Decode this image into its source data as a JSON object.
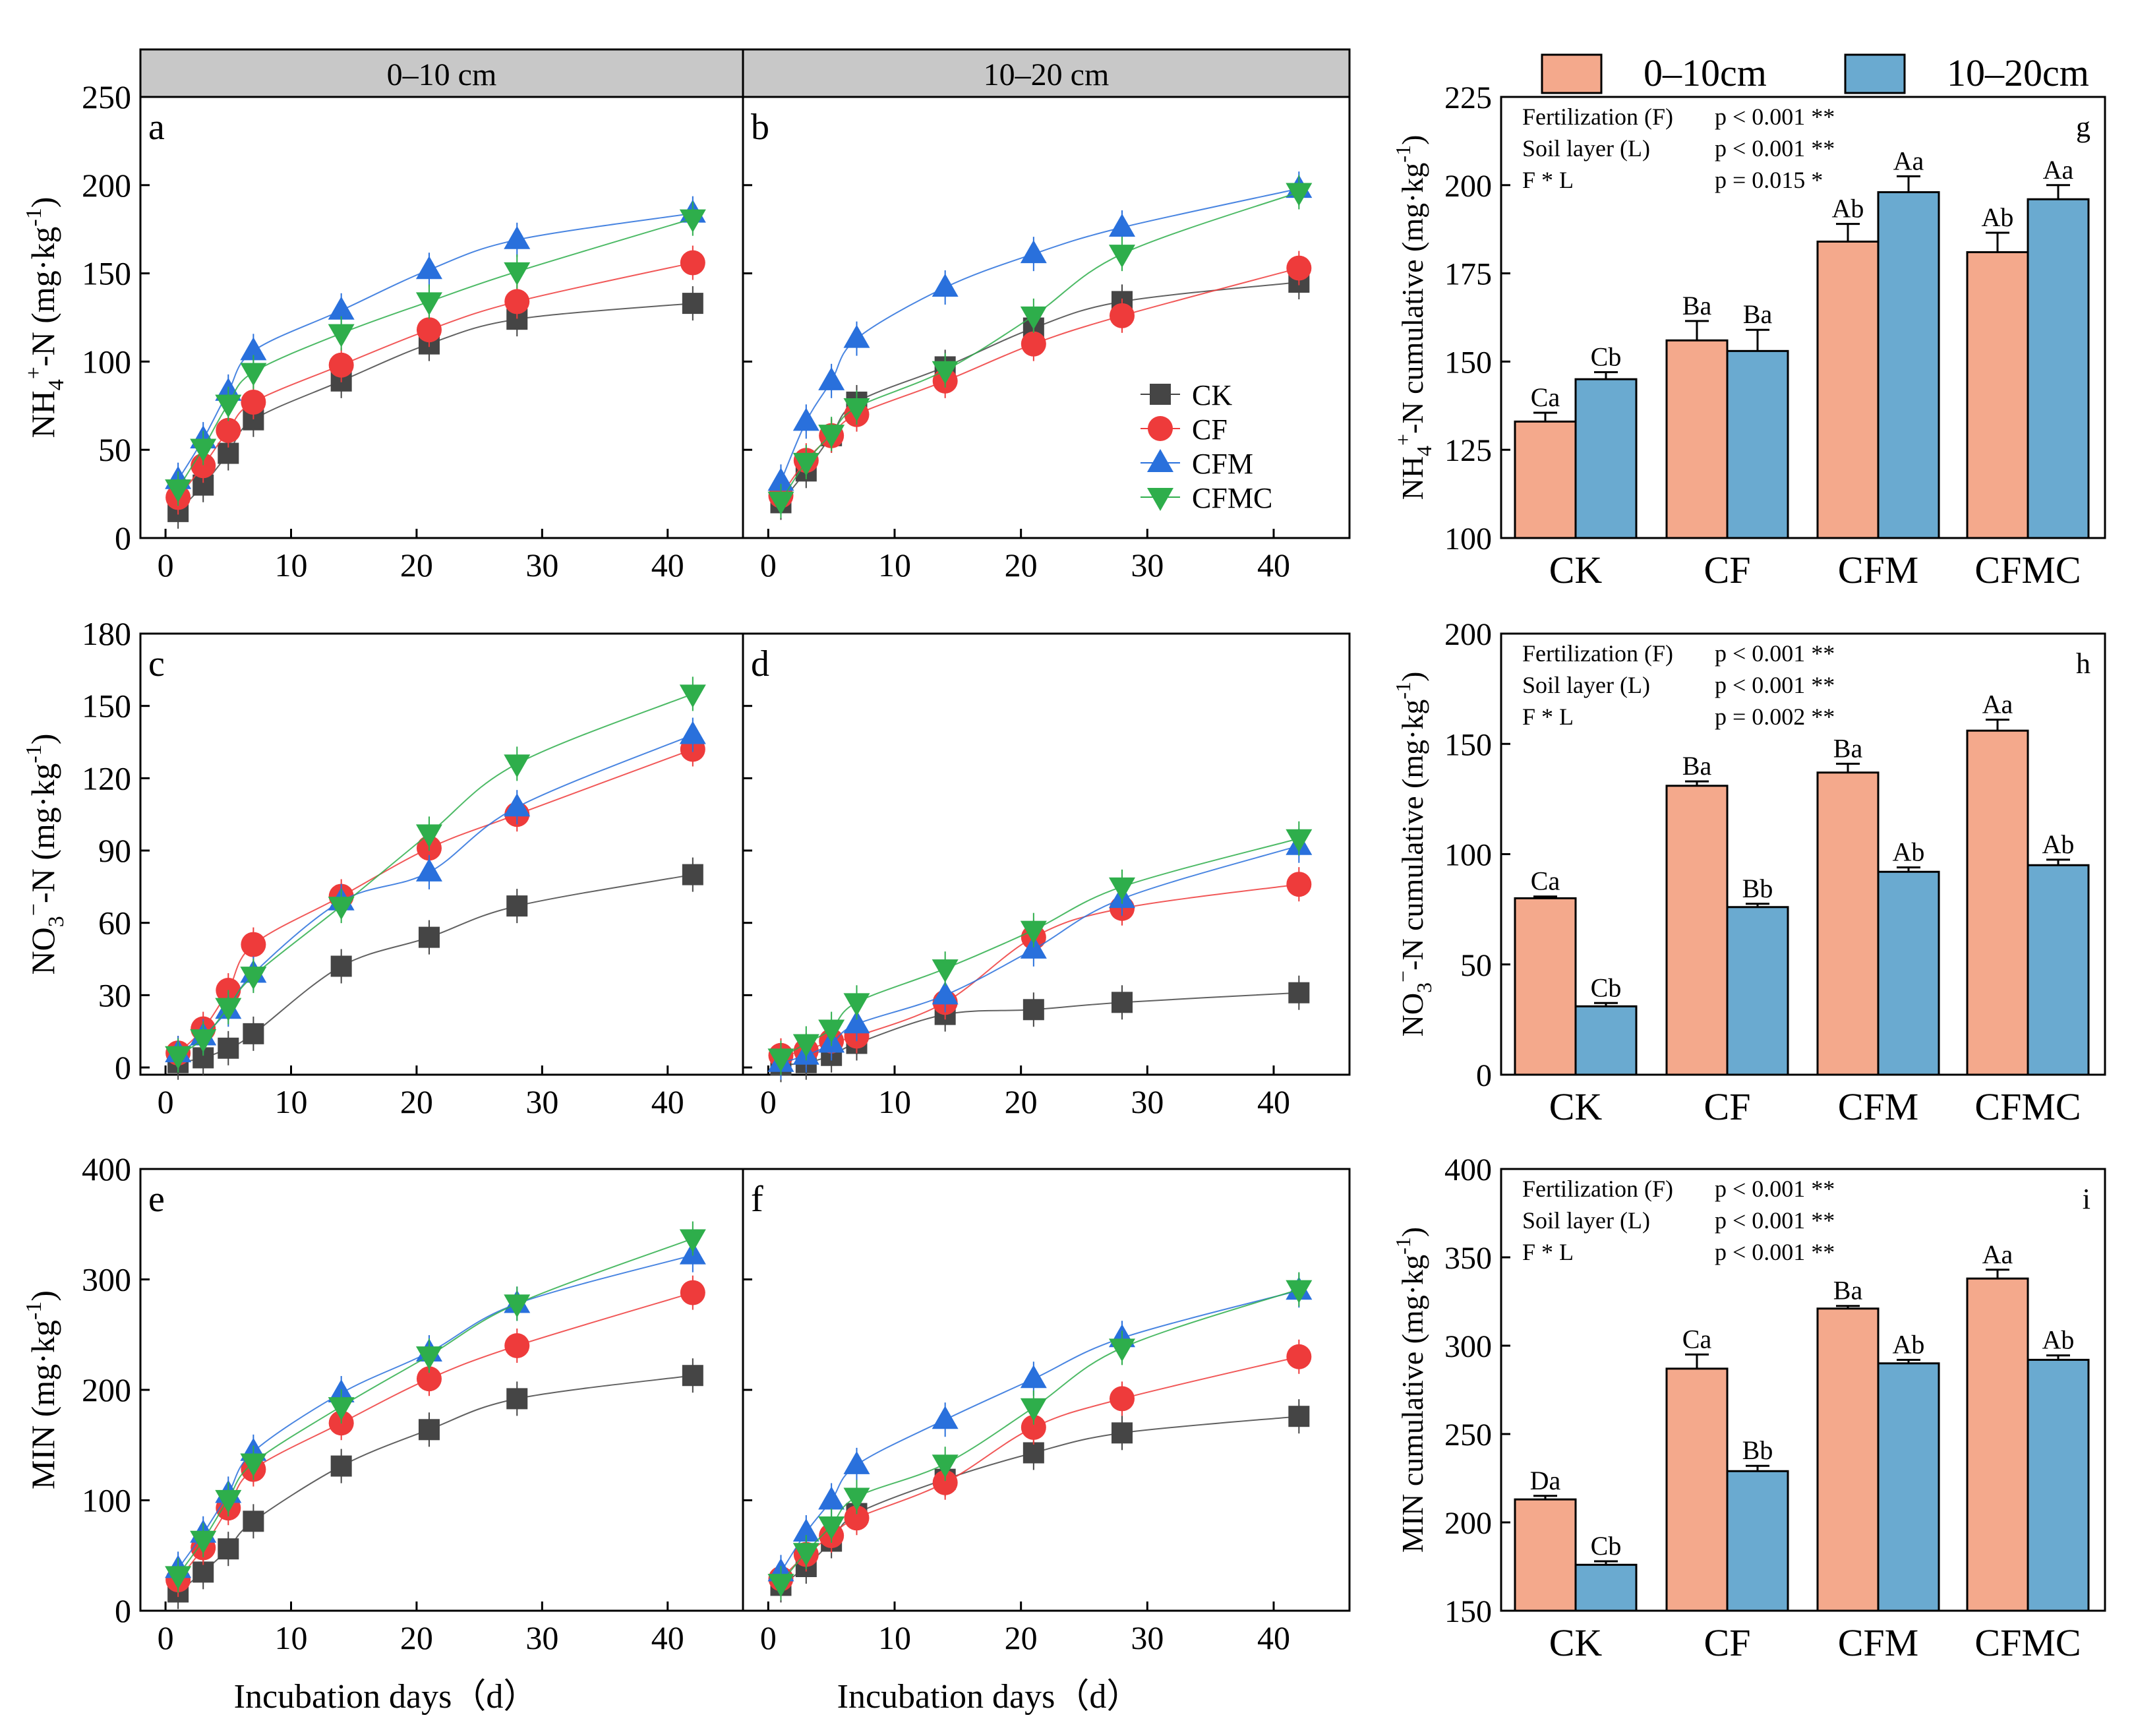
{
  "figure": {
    "days_axis_title": "Incubation days（d）",
    "depth_headers": [
      "0–10 cm",
      "10–20 cm"
    ],
    "series_names": [
      "CK",
      "CF",
      "CFM",
      "CFMC"
    ],
    "series_colors": {
      "CK": "#454545",
      "CF": "#EE3B3B",
      "CFM": "#2970DC",
      "CFMC": "#2EAE4B"
    },
    "bar_colors": {
      "0-10cm": "#F4A98C",
      "10-20cm": "#6AAAD0"
    },
    "bar_legend": [
      "0–10cm",
      "10–20cm"
    ]
  },
  "chart_data": [
    {
      "id": "a",
      "type": "line",
      "title": "0–10 cm",
      "panel_label": "a",
      "xlabel": "",
      "ylabel": "NH4+-N (mg·kg-1)",
      "xlim": [
        -2,
        46
      ],
      "ylim": [
        0,
        250
      ],
      "xticks": [
        0,
        10,
        20,
        30,
        40
      ],
      "yticks": [
        0,
        50,
        100,
        150,
        200,
        250
      ],
      "x": [
        1,
        3,
        5,
        7,
        14,
        21,
        28,
        42
      ],
      "series": [
        {
          "name": "CK",
          "values": [
            15,
            30,
            48,
            67,
            89,
            110,
            124,
            133
          ]
        },
        {
          "name": "CF",
          "values": [
            23,
            41,
            61,
            77,
            98,
            118,
            134,
            156
          ]
        },
        {
          "name": "CFM",
          "values": [
            33,
            56,
            83,
            106,
            129,
            152,
            169,
            184
          ]
        },
        {
          "name": "CFMC",
          "values": [
            28,
            51,
            76,
            94,
            116,
            134,
            151,
            181
          ]
        }
      ]
    },
    {
      "id": "b",
      "type": "line",
      "title": "10–20 cm",
      "panel_label": "b",
      "xlabel": "",
      "ylabel": "",
      "xlim": [
        -2,
        46
      ],
      "ylim": [
        0,
        250
      ],
      "xticks": [
        0,
        10,
        20,
        30,
        40
      ],
      "yticks": [],
      "legend_position": "center-right",
      "x": [
        1,
        3,
        5,
        7,
        14,
        21,
        28,
        42
      ],
      "series": [
        {
          "name": "CK",
          "values": [
            20,
            38,
            58,
            77,
            97,
            119,
            134,
            145
          ]
        },
        {
          "name": "CF",
          "values": [
            24,
            44,
            58,
            70,
            89,
            110,
            126,
            153
          ]
        },
        {
          "name": "CFM",
          "values": [
            32,
            66,
            89,
            113,
            142,
            161,
            176,
            198
          ]
        },
        {
          "name": "CFMC",
          "values": [
            21,
            43,
            59,
            74,
            95,
            126,
            161,
            196
          ]
        }
      ]
    },
    {
      "id": "c",
      "type": "line",
      "panel_label": "c",
      "xlabel": "",
      "ylabel": "NO3−-N (mg·kg-1)",
      "xlim": [
        -2,
        46
      ],
      "ylim": [
        -3,
        180
      ],
      "xticks": [
        0,
        10,
        20,
        30,
        40
      ],
      "yticks": [
        0,
        30,
        60,
        90,
        120,
        150,
        180
      ],
      "x": [
        1,
        3,
        5,
        7,
        14,
        21,
        28,
        42
      ],
      "series": [
        {
          "name": "CK",
          "values": [
            2,
            4,
            8,
            14,
            42,
            54,
            67,
            80
          ]
        },
        {
          "name": "CF",
          "values": [
            6,
            16,
            32,
            51,
            71,
            91,
            105,
            132
          ]
        },
        {
          "name": "CFM",
          "values": [
            6,
            13,
            24,
            39,
            69,
            81,
            108,
            138
          ]
        },
        {
          "name": "CFMC",
          "values": [
            5,
            12,
            25,
            38,
            67,
            97,
            126,
            155
          ]
        }
      ]
    },
    {
      "id": "d",
      "type": "line",
      "panel_label": "d",
      "xlabel": "",
      "ylabel": "",
      "xlim": [
        -2,
        46
      ],
      "ylim": [
        -3,
        180
      ],
      "xticks": [
        0,
        10,
        20,
        30,
        40
      ],
      "yticks": [],
      "x": [
        1,
        3,
        5,
        7,
        14,
        21,
        28,
        42
      ],
      "series": [
        {
          "name": "CK",
          "values": [
            1,
            2,
            5,
            10,
            22,
            24,
            27,
            31
          ]
        },
        {
          "name": "CF",
          "values": [
            5,
            7,
            11,
            13,
            27,
            54,
            66,
            76
          ]
        },
        {
          "name": "CFM",
          "values": [
            2,
            5,
            10,
            18,
            30,
            49,
            70,
            92
          ]
        },
        {
          "name": "CFMC",
          "values": [
            4,
            10,
            16,
            27,
            41,
            57,
            75,
            95
          ]
        }
      ]
    },
    {
      "id": "e",
      "type": "line",
      "panel_label": "e",
      "xlabel": "Incubation days（d）",
      "ylabel": "MIN (mg·kg-1)",
      "xlim": [
        -2,
        46
      ],
      "ylim": [
        0,
        400
      ],
      "xticks": [
        0,
        10,
        20,
        30,
        40
      ],
      "yticks": [
        0,
        100,
        200,
        300,
        400
      ],
      "x": [
        1,
        3,
        5,
        7,
        14,
        21,
        28,
        42
      ],
      "series": [
        {
          "name": "CK",
          "values": [
            17,
            35,
            56,
            81,
            131,
            164,
            192,
            213
          ]
        },
        {
          "name": "CF",
          "values": [
            28,
            57,
            93,
            128,
            170,
            210,
            240,
            288
          ]
        },
        {
          "name": "CFM",
          "values": [
            38,
            70,
            106,
            144,
            197,
            234,
            278,
            322
          ]
        },
        {
          "name": "CFMC",
          "values": [
            32,
            64,
            101,
            134,
            185,
            231,
            278,
            337
          ]
        }
      ]
    },
    {
      "id": "f",
      "type": "line",
      "panel_label": "f",
      "xlabel": "Incubation days（d）",
      "ylabel": "",
      "xlim": [
        -2,
        46
      ],
      "ylim": [
        0,
        400
      ],
      "xticks": [
        0,
        10,
        20,
        30,
        40
      ],
      "yticks": [],
      "x": [
        1,
        3,
        5,
        7,
        14,
        21,
        28,
        42
      ],
      "series": [
        {
          "name": "CK",
          "values": [
            23,
            40,
            63,
            88,
            119,
            143,
            161,
            176
          ]
        },
        {
          "name": "CF",
          "values": [
            29,
            51,
            68,
            84,
            116,
            166,
            192,
            230
          ]
        },
        {
          "name": "CFM",
          "values": [
            35,
            71,
            100,
            132,
            173,
            210,
            247,
            290
          ]
        },
        {
          "name": "CFMC",
          "values": [
            25,
            53,
            77,
            103,
            133,
            184,
            238,
            291
          ]
        }
      ]
    },
    {
      "id": "g",
      "type": "bar",
      "panel_label": "g",
      "ylabel": "NH4+-N cumulative (mg·kg-1)",
      "ylim": [
        100,
        225
      ],
      "yticks": [
        100,
        125,
        150,
        175,
        200,
        225
      ],
      "categories": [
        "CK",
        "CF",
        "CFM",
        "CFMC"
      ],
      "series": [
        {
          "name": "0–10cm",
          "values": [
            133,
            156,
            184,
            181
          ],
          "errors": [
            2.5,
            5.5,
            5,
            5.5
          ],
          "letters": [
            "Ca",
            "Ba",
            "Ab",
            "Ab"
          ]
        },
        {
          "name": "10–20cm",
          "values": [
            145,
            153,
            198,
            196
          ],
          "errors": [
            2,
            6,
            4.5,
            4
          ],
          "letters": [
            "Cb",
            "Ba",
            "Aa",
            "Aa"
          ]
        }
      ],
      "stats": [
        {
          "factor": "Fertilization (F)",
          "p": "p < 0.001 **"
        },
        {
          "factor": "Soil layer (L)",
          "p": "p < 0.001 **"
        },
        {
          "factor": "F * L",
          "p": "p = 0.015 *"
        }
      ]
    },
    {
      "id": "h",
      "type": "bar",
      "panel_label": "h",
      "ylabel": "NO3−-N cumulative (mg·kg-1)",
      "ylim": [
        0,
        200
      ],
      "yticks": [
        0,
        50,
        100,
        150,
        200
      ],
      "categories": [
        "CK",
        "CF",
        "CFM",
        "CFMC"
      ],
      "series": [
        {
          "name": "0–10cm",
          "values": [
            80,
            131,
            137,
            156
          ],
          "errors": [
            0.8,
            2,
            4,
            5
          ],
          "letters": [
            "Ca",
            "Ba",
            "Ba",
            "Aa"
          ]
        },
        {
          "name": "10–20cm",
          "values": [
            31,
            76,
            92,
            95
          ],
          "errors": [
            1.5,
            1.5,
            2,
            2.5
          ],
          "letters": [
            "Cb",
            "Bb",
            "Ab",
            "Ab"
          ]
        }
      ],
      "stats": [
        {
          "factor": "Fertilization (F)",
          "p": "p < 0.001 **"
        },
        {
          "factor": "Soil layer (L)",
          "p": "p < 0.001 **"
        },
        {
          "factor": "F * L",
          "p": "p = 0.002 **"
        }
      ]
    },
    {
      "id": "i",
      "type": "bar",
      "panel_label": "i",
      "ylabel": "MIN cumulative (mg·kg-1)",
      "ylim": [
        150,
        400
      ],
      "yticks": [
        150,
        200,
        250,
        300,
        350,
        400
      ],
      "categories": [
        "CK",
        "CF",
        "CFM",
        "CFMC"
      ],
      "series": [
        {
          "name": "0–10cm",
          "values": [
            213,
            287,
            321,
            338
          ],
          "errors": [
            2,
            8,
            1.5,
            5
          ],
          "letters": [
            "Da",
            "Ca",
            "Ba",
            "Aa"
          ]
        },
        {
          "name": "10–20cm",
          "values": [
            176,
            229,
            290,
            292
          ],
          "errors": [
            2,
            3,
            2,
            2.5
          ],
          "letters": [
            "Cb",
            "Bb",
            "Ab",
            "Ab"
          ]
        }
      ],
      "stats": [
        {
          "factor": "Fertilization (F)",
          "p": "p < 0.001 **"
        },
        {
          "factor": "Soil layer (L)",
          "p": "p < 0.001 **"
        },
        {
          "factor": "F * L",
          "p": "p < 0.001 **"
        }
      ]
    }
  ]
}
